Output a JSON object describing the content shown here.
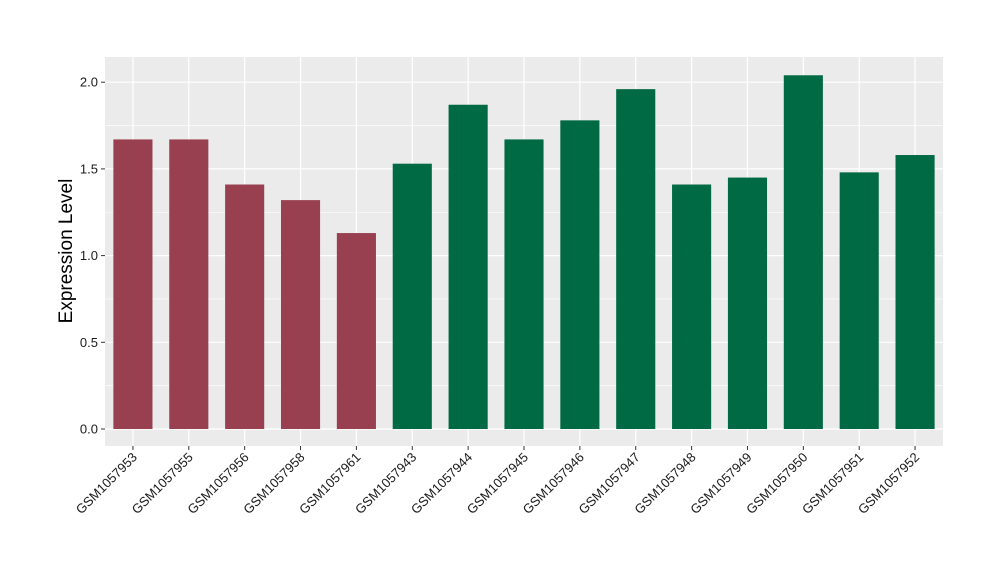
{
  "chart_data": {
    "type": "bar",
    "title": "",
    "xlabel": "",
    "ylabel": "Expression Level",
    "ylim": [
      -0.1,
      2.15
    ],
    "yticks": [
      0.0,
      0.5,
      1.0,
      1.5,
      2.0
    ],
    "ytick_labels": [
      "0.0",
      "0.5",
      "1.0",
      "1.5",
      "2.0"
    ],
    "grid": true,
    "legend": "none",
    "categories": [
      "GSM1057953",
      "GSM1057955",
      "GSM1057956",
      "GSM1057958",
      "GSM1057961",
      "GSM1057943",
      "GSM1057944",
      "GSM1057945",
      "GSM1057946",
      "GSM1057947",
      "GSM1057948",
      "GSM1057949",
      "GSM1057950",
      "GSM1057951",
      "GSM1057952"
    ],
    "values": [
      1.67,
      1.67,
      1.41,
      1.32,
      1.13,
      1.53,
      1.87,
      1.67,
      1.78,
      1.96,
      1.41,
      1.45,
      2.04,
      1.48,
      1.58
    ],
    "bar_colors": [
      "#98404f",
      "#98404f",
      "#98404f",
      "#98404f",
      "#98404f",
      "#006a44",
      "#006a44",
      "#006a44",
      "#006a44",
      "#006a44",
      "#006a44",
      "#006a44",
      "#006a44",
      "#006a44",
      "#006a44"
    ],
    "panel_background": "#ebebeb",
    "grid_color": "#ffffff"
  }
}
